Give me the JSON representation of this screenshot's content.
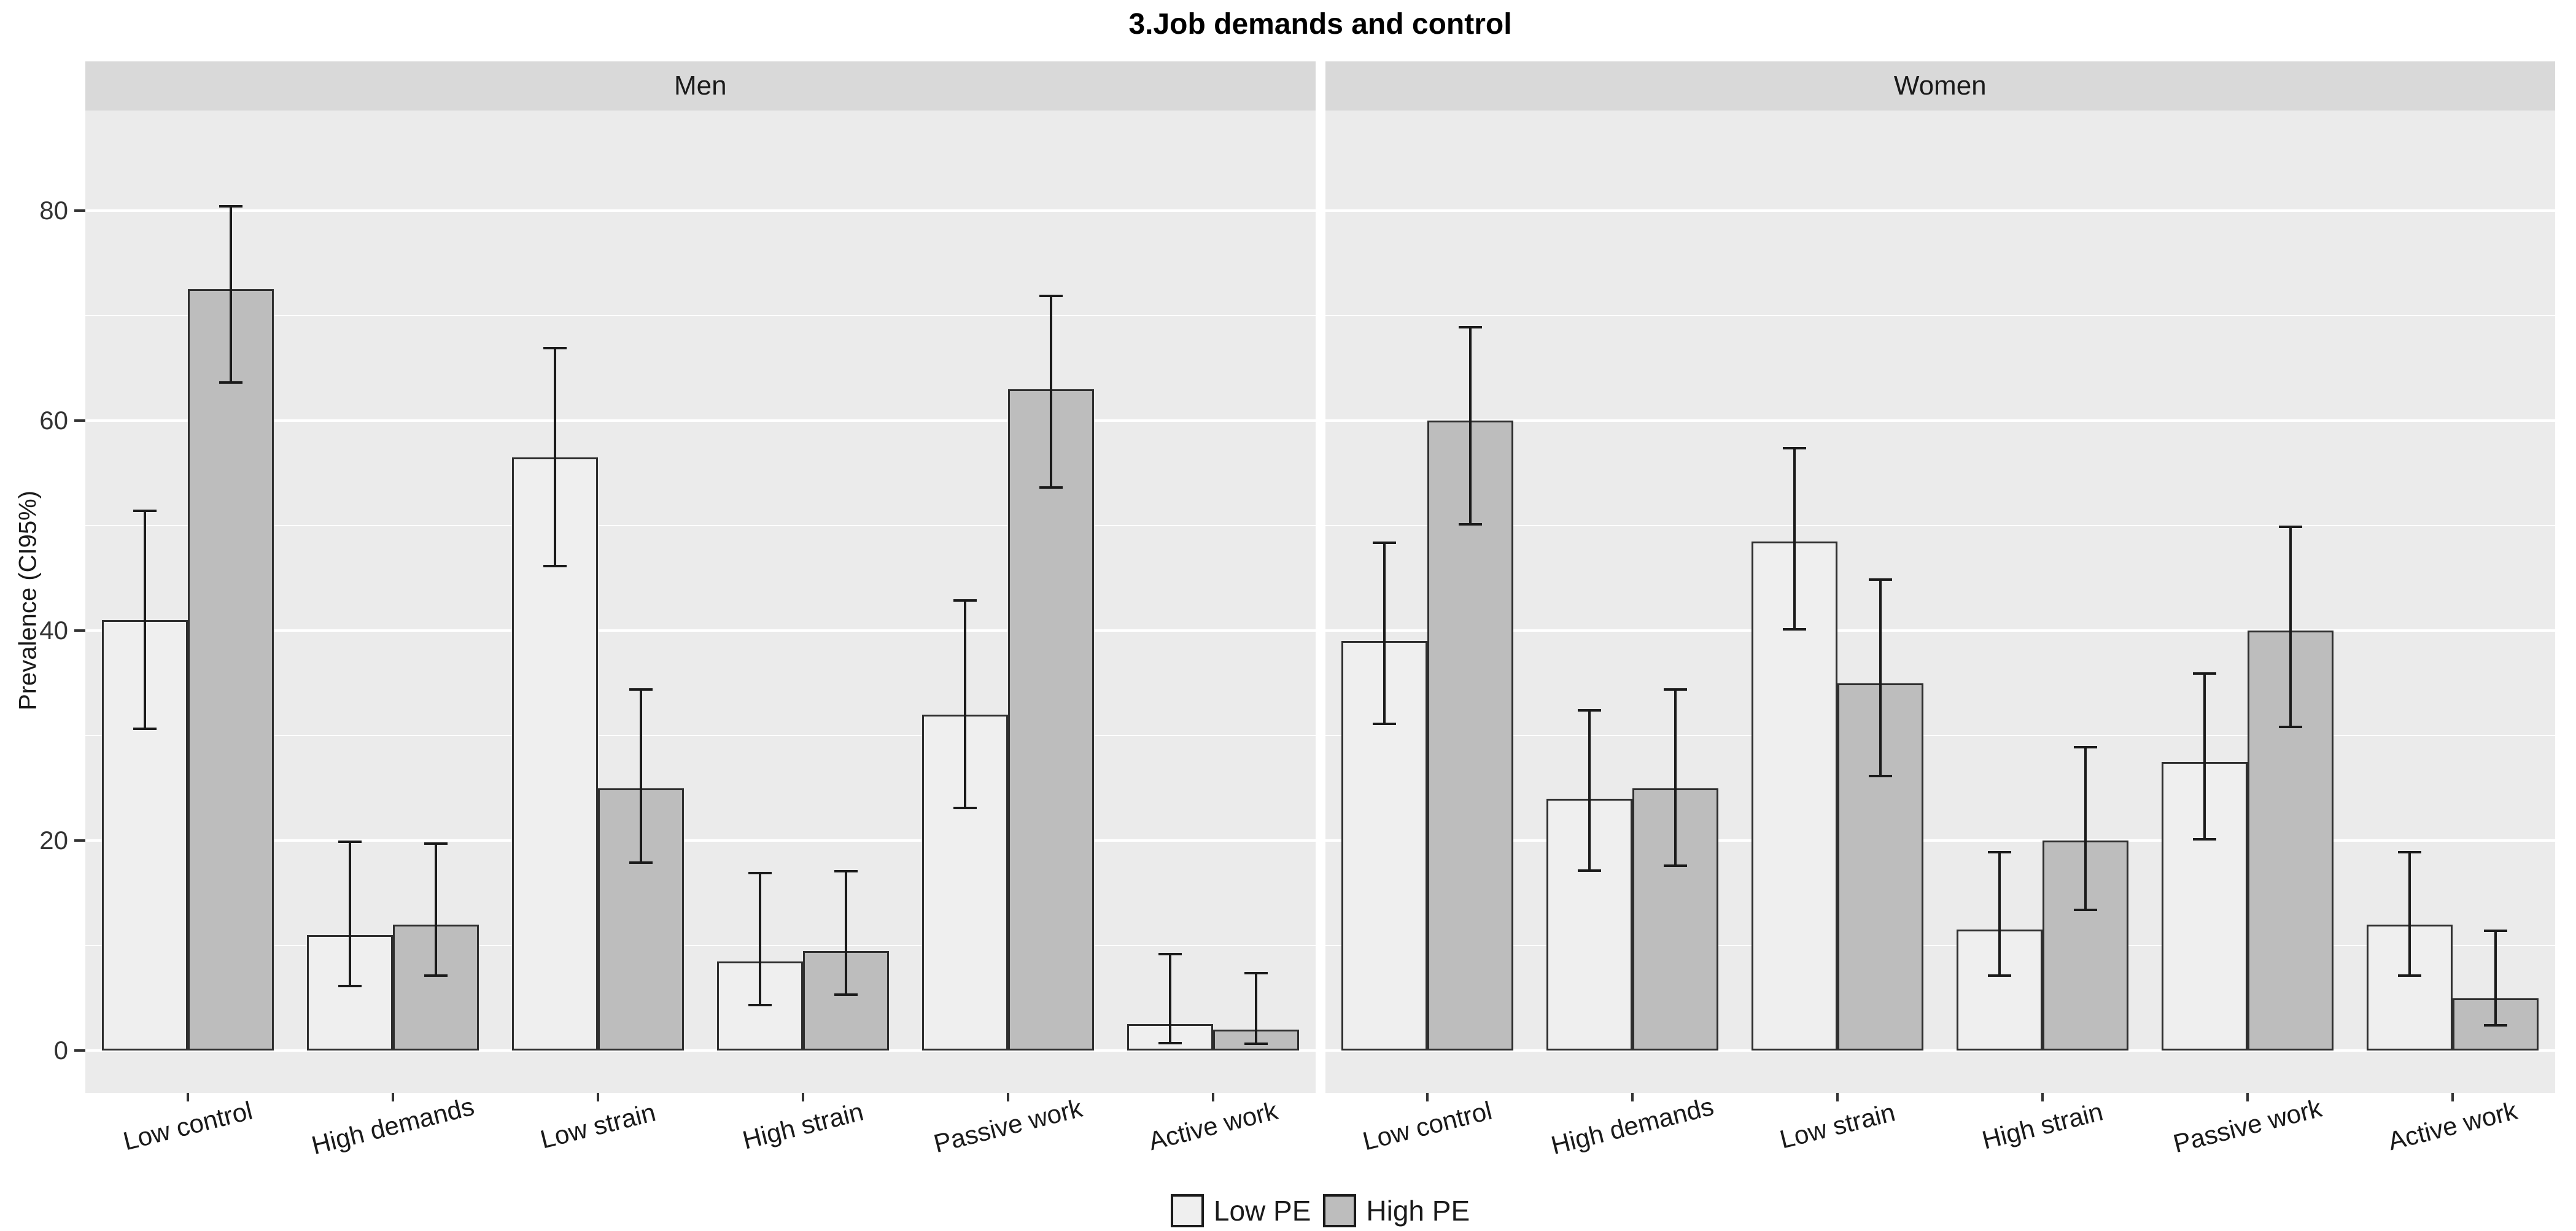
{
  "title": "3.Job demands and control",
  "y_axis": {
    "label": "Prevalence (CI95%)"
  },
  "legend": {
    "items": [
      {
        "label": "Low PE",
        "color": "#EFEFEF"
      },
      {
        "label": "High PE",
        "color": "#BDBDBD"
      }
    ]
  },
  "colors": {
    "panel_background": "#EBEBEB",
    "strip_background": "#D9D9D9",
    "gridline": "#FFFFFF",
    "bar_border": "#2E2E2E",
    "error_bar": "#1A1A1A",
    "low_pe_fill": "#EFEFEF",
    "high_pe_fill": "#BDBDBD",
    "axis_text": "#333333"
  },
  "chart_data": {
    "type": "bar",
    "title": "3.Job demands and control",
    "xlabel": "",
    "ylabel": "Prevalence (CI95%)",
    "ylim": [
      0,
      90
    ],
    "yticks": [
      0,
      20,
      40,
      60,
      80
    ],
    "yticks_minor": [
      10,
      30,
      50,
      70
    ],
    "grid": true,
    "legend_position": "bottom",
    "error_bars": "95% confidence interval",
    "categories": [
      "Low control",
      "High demands",
      "Low strain",
      "High strain",
      "Passive work",
      "Active work"
    ],
    "facets": [
      {
        "label": "Men",
        "series": [
          {
            "name": "Low PE",
            "values": [
              41,
              11,
              56.5,
              8.5,
              32,
              2.5
            ],
            "ci_low": [
              30.5,
              6,
              46,
              4.2,
              23,
              0.6
            ],
            "ci_high": [
              51.5,
              20,
              67,
              17,
              43,
              9.3
            ]
          },
          {
            "name": "High PE",
            "values": [
              72.5,
              12,
              25,
              9.5,
              63,
              2
            ],
            "ci_low": [
              63.5,
              7,
              17.8,
              5.2,
              53.5,
              0.5
            ],
            "ci_high": [
              80.5,
              19.8,
              34.5,
              17.2,
              72,
              7.5
            ]
          }
        ]
      },
      {
        "label": "Women",
        "series": [
          {
            "name": "Low PE",
            "values": [
              39,
              24,
              48.5,
              11.5,
              27.5,
              12
            ],
            "ci_low": [
              31,
              17,
              40,
              7,
              20,
              7
            ],
            "ci_high": [
              48.5,
              32.5,
              57.5,
              19,
              36,
              19
            ]
          },
          {
            "name": "High PE",
            "values": [
              60,
              25,
              35,
              20,
              40,
              5
            ],
            "ci_low": [
              50,
              17.5,
              26,
              13.3,
              30.7,
              2.3
            ],
            "ci_high": [
              69,
              34.5,
              45,
              29,
              50,
              11.5
            ]
          }
        ]
      }
    ]
  }
}
